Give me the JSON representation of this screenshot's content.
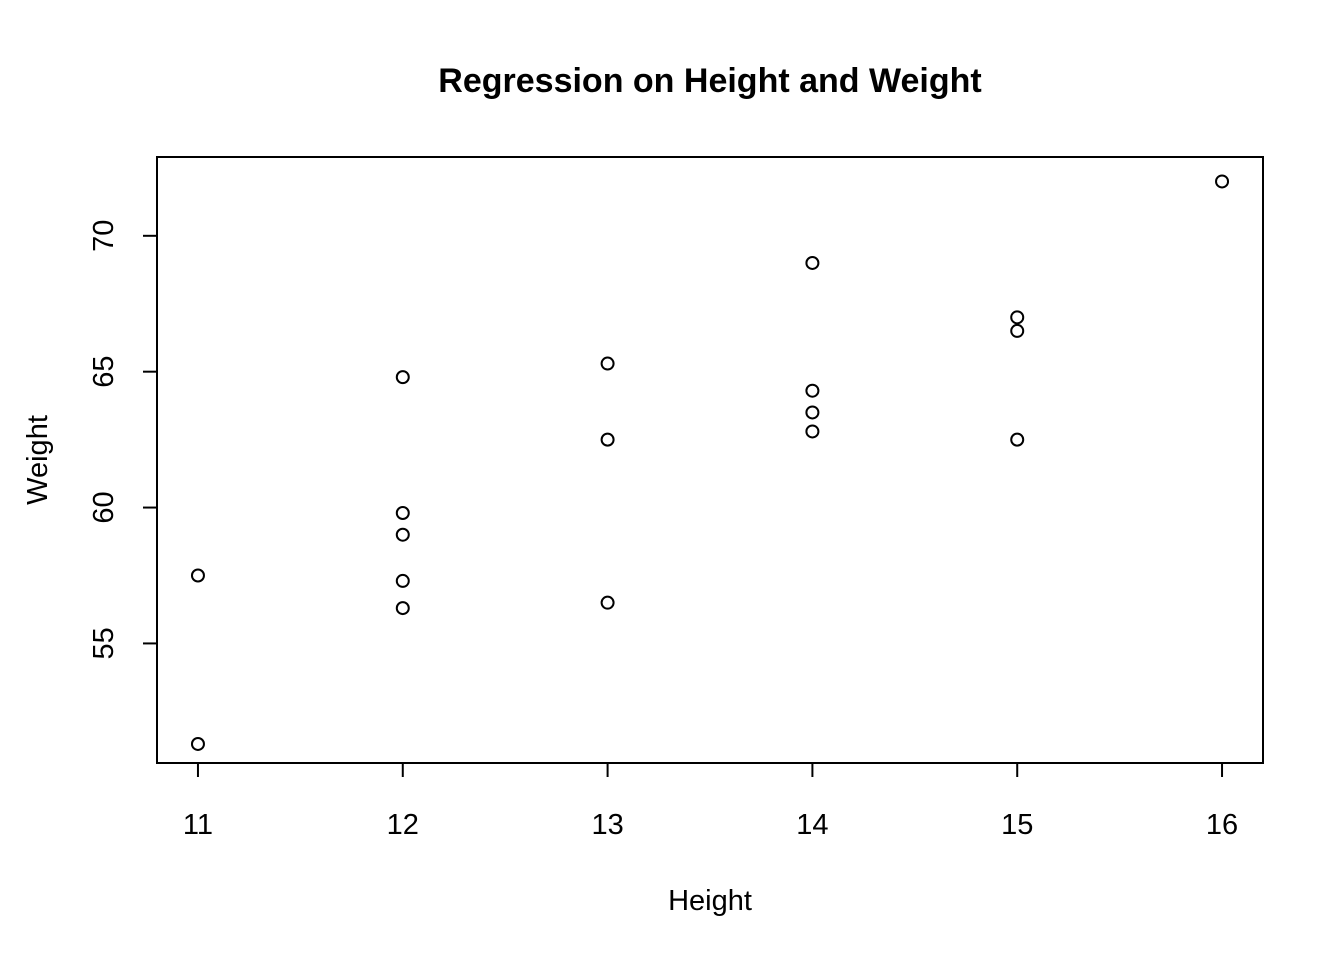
{
  "chart_data": {
    "type": "scatter",
    "title": "Regression on Height and Weight",
    "xlabel": "Height",
    "ylabel": "Weight",
    "xlim": [
      10.8,
      16.2
    ],
    "ylim": [
      50.6,
      72.9
    ],
    "x_ticks": [
      11,
      12,
      13,
      14,
      15,
      16
    ],
    "y_ticks": [
      55,
      60,
      65,
      70
    ],
    "x_tick_labels": [
      "11",
      "12",
      "13",
      "14",
      "15",
      "16"
    ],
    "y_tick_labels": [
      "55",
      "60",
      "65",
      "70"
    ],
    "grid": false,
    "marker": "open-circle",
    "points": [
      {
        "x": 11,
        "y": 57.5
      },
      {
        "x": 11,
        "y": 51.3
      },
      {
        "x": 12,
        "y": 64.8
      },
      {
        "x": 12,
        "y": 59.8
      },
      {
        "x": 12,
        "y": 59.0
      },
      {
        "x": 12,
        "y": 57.3
      },
      {
        "x": 12,
        "y": 56.3
      },
      {
        "x": 13,
        "y": 65.3
      },
      {
        "x": 13,
        "y": 62.5
      },
      {
        "x": 13,
        "y": 56.5
      },
      {
        "x": 14,
        "y": 69.0
      },
      {
        "x": 14,
        "y": 64.3
      },
      {
        "x": 14,
        "y": 63.5
      },
      {
        "x": 14,
        "y": 62.8
      },
      {
        "x": 15,
        "y": 67.0
      },
      {
        "x": 15,
        "y": 66.5
      },
      {
        "x": 15,
        "y": 62.5
      },
      {
        "x": 16,
        "y": 72.0
      }
    ]
  }
}
